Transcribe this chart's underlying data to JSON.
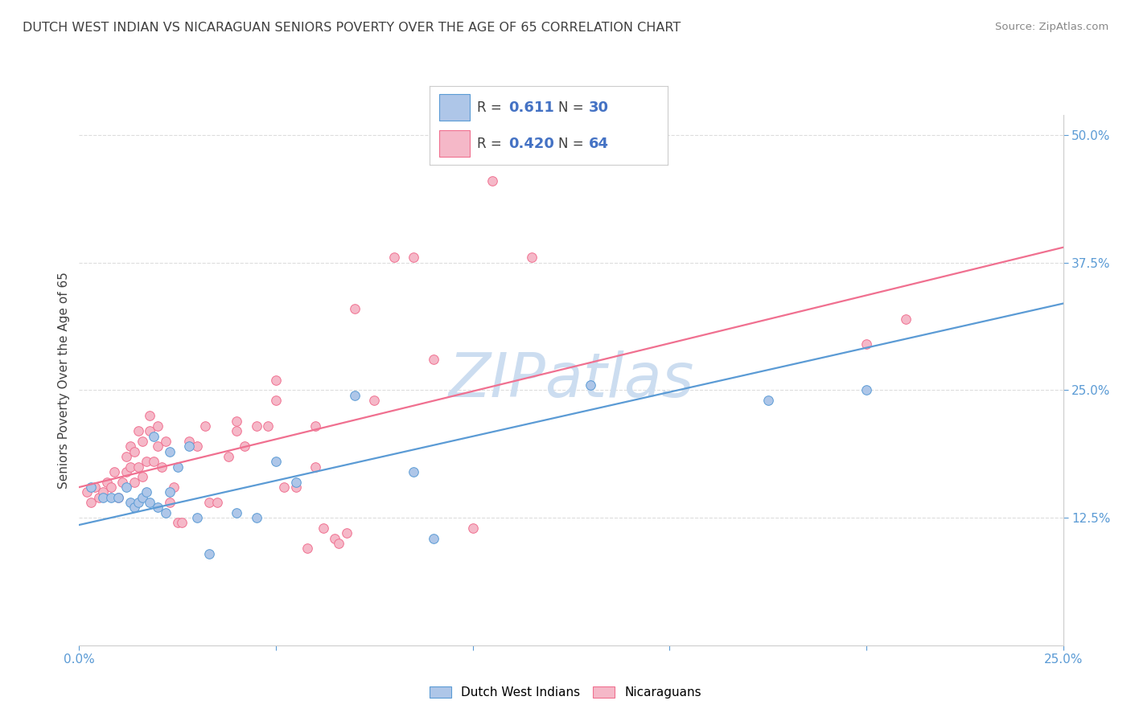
{
  "title": "DUTCH WEST INDIAN VS NICARAGUAN SENIORS POVERTY OVER THE AGE OF 65 CORRELATION CHART",
  "source": "Source: ZipAtlas.com",
  "ylabel": "Seniors Poverty Over the Age of 65",
  "xlim": [
    0.0,
    0.25
  ],
  "ylim": [
    0.0,
    0.52
  ],
  "xtick_positions": [
    0.0,
    0.05,
    0.1,
    0.15,
    0.2,
    0.25
  ],
  "xticklabels": [
    "0.0%",
    "",
    "",
    "",
    "",
    "25.0%"
  ],
  "ytick_positions": [
    0.125,
    0.25,
    0.375,
    0.5
  ],
  "ytick_labels": [
    "12.5%",
    "25.0%",
    "37.5%",
    "50.0%"
  ],
  "blue_fill": "#aec6e8",
  "pink_fill": "#f5b8c8",
  "blue_edge": "#5b9bd5",
  "pink_edge": "#f07090",
  "blue_line": "#5b9bd5",
  "pink_line": "#f07090",
  "text_color": "#404040",
  "tick_color": "#5b9bd5",
  "grid_color": "#dddddd",
  "watermark": "ZIPatlas",
  "watermark_color": "#ccddf0",
  "legend_r_color": "#404040",
  "legend_val_color": "#4472c4",
  "legend_r_blue": "0.611",
  "legend_n_blue": "30",
  "legend_r_pink": "0.420",
  "legend_n_pink": "64",
  "dutch_label": "Dutch West Indians",
  "nica_label": "Nicaraguans",
  "blue_scatter": [
    [
      0.003,
      0.155
    ],
    [
      0.006,
      0.145
    ],
    [
      0.008,
      0.145
    ],
    [
      0.01,
      0.145
    ],
    [
      0.012,
      0.155
    ],
    [
      0.013,
      0.14
    ],
    [
      0.014,
      0.135
    ],
    [
      0.015,
      0.14
    ],
    [
      0.016,
      0.145
    ],
    [
      0.017,
      0.15
    ],
    [
      0.018,
      0.14
    ],
    [
      0.019,
      0.205
    ],
    [
      0.02,
      0.135
    ],
    [
      0.022,
      0.13
    ],
    [
      0.023,
      0.15
    ],
    [
      0.023,
      0.19
    ],
    [
      0.025,
      0.175
    ],
    [
      0.028,
      0.195
    ],
    [
      0.03,
      0.125
    ],
    [
      0.033,
      0.09
    ],
    [
      0.04,
      0.13
    ],
    [
      0.045,
      0.125
    ],
    [
      0.05,
      0.18
    ],
    [
      0.055,
      0.16
    ],
    [
      0.07,
      0.245
    ],
    [
      0.085,
      0.17
    ],
    [
      0.09,
      0.105
    ],
    [
      0.13,
      0.255
    ],
    [
      0.175,
      0.24
    ],
    [
      0.2,
      0.25
    ]
  ],
  "pink_scatter": [
    [
      0.002,
      0.15
    ],
    [
      0.003,
      0.14
    ],
    [
      0.004,
      0.155
    ],
    [
      0.005,
      0.145
    ],
    [
      0.006,
      0.15
    ],
    [
      0.007,
      0.16
    ],
    [
      0.008,
      0.155
    ],
    [
      0.009,
      0.17
    ],
    [
      0.01,
      0.145
    ],
    [
      0.011,
      0.16
    ],
    [
      0.012,
      0.17
    ],
    [
      0.012,
      0.185
    ],
    [
      0.013,
      0.175
    ],
    [
      0.013,
      0.195
    ],
    [
      0.014,
      0.16
    ],
    [
      0.014,
      0.19
    ],
    [
      0.015,
      0.175
    ],
    [
      0.015,
      0.21
    ],
    [
      0.016,
      0.2
    ],
    [
      0.016,
      0.165
    ],
    [
      0.017,
      0.18
    ],
    [
      0.018,
      0.21
    ],
    [
      0.018,
      0.225
    ],
    [
      0.019,
      0.18
    ],
    [
      0.02,
      0.195
    ],
    [
      0.02,
      0.215
    ],
    [
      0.021,
      0.175
    ],
    [
      0.022,
      0.2
    ],
    [
      0.023,
      0.14
    ],
    [
      0.024,
      0.155
    ],
    [
      0.025,
      0.12
    ],
    [
      0.026,
      0.12
    ],
    [
      0.028,
      0.2
    ],
    [
      0.03,
      0.195
    ],
    [
      0.032,
      0.215
    ],
    [
      0.033,
      0.14
    ],
    [
      0.035,
      0.14
    ],
    [
      0.038,
      0.185
    ],
    [
      0.04,
      0.21
    ],
    [
      0.04,
      0.22
    ],
    [
      0.042,
      0.195
    ],
    [
      0.045,
      0.215
    ],
    [
      0.048,
      0.215
    ],
    [
      0.05,
      0.24
    ],
    [
      0.05,
      0.26
    ],
    [
      0.052,
      0.155
    ],
    [
      0.055,
      0.155
    ],
    [
      0.058,
      0.095
    ],
    [
      0.06,
      0.175
    ],
    [
      0.06,
      0.215
    ],
    [
      0.062,
      0.115
    ],
    [
      0.065,
      0.105
    ],
    [
      0.066,
      0.1
    ],
    [
      0.068,
      0.11
    ],
    [
      0.07,
      0.33
    ],
    [
      0.075,
      0.24
    ],
    [
      0.08,
      0.38
    ],
    [
      0.085,
      0.38
    ],
    [
      0.09,
      0.28
    ],
    [
      0.1,
      0.115
    ],
    [
      0.105,
      0.455
    ],
    [
      0.115,
      0.38
    ],
    [
      0.2,
      0.295
    ],
    [
      0.21,
      0.32
    ]
  ],
  "blue_trendline": [
    [
      0.0,
      0.118
    ],
    [
      0.25,
      0.335
    ]
  ],
  "pink_trendline": [
    [
      0.0,
      0.155
    ],
    [
      0.25,
      0.39
    ]
  ],
  "background_color": "#ffffff"
}
